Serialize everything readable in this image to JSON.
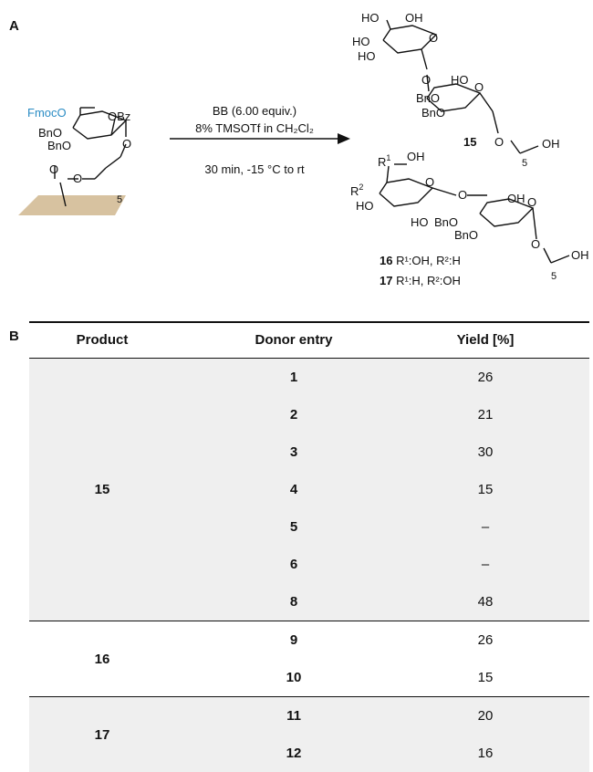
{
  "panel_a_label": "A",
  "panel_b_label": "B",
  "scheme": {
    "conditions_line1": "BB (6.00 equiv.)",
    "conditions_line2": "8% TMSOTf in CH₂Cl₂",
    "conditions_line3": "30 min, -15 °C to rt",
    "start_labels": {
      "fmoco": "FmocO",
      "obz": "OBz",
      "bno_1": "BnO",
      "bno_2": "BnO",
      "ester_o": "O",
      "ester_o2": "O",
      "chain_o": "O",
      "subscript": "5"
    },
    "prod15": {
      "number": "15",
      "ho_1": "HO",
      "oh_1": "OH",
      "ho_2": "HO",
      "ho_3": "HO",
      "ring_o_1": "O",
      "ring_o_2": "O",
      "link_o": "O",
      "ho_4": "HO",
      "bno_1": "BnO",
      "bno_2": "BnO",
      "o_glyco": "O",
      "oh_end": "OH",
      "subscript": "5"
    },
    "prod1617": {
      "r1": "R",
      "r1_sup": "1",
      "r2": "R",
      "r2_sup": "2",
      "oh_top": "OH",
      "ho_left": "HO",
      "ring_o": "O",
      "link_o": "O",
      "oh_right": "OH",
      "ring_o2": "O",
      "ho_mid": "HO",
      "bno_1": "BnO",
      "bno_2": "BnO",
      "o_glyco": "O",
      "oh_end": "OH",
      "subscript": "5",
      "label16_num": "16",
      "label16_text": " R¹:OH, R²:H",
      "label17_num": "17",
      "label17_text": " R¹:H, R²:OH"
    }
  },
  "table": {
    "headers": [
      "Product",
      "Donor entry",
      "Yield [%]"
    ],
    "groups": [
      {
        "product": "15",
        "rows": [
          {
            "entry": "1",
            "yield": "26"
          },
          {
            "entry": "2",
            "yield": "21"
          },
          {
            "entry": "3",
            "yield": "30"
          },
          {
            "entry": "4",
            "yield": "15"
          },
          {
            "entry": "5",
            "yield": "–"
          },
          {
            "entry": "6",
            "yield": "–"
          },
          {
            "entry": "8",
            "yield": "48"
          }
        ]
      },
      {
        "product": "16",
        "rows": [
          {
            "entry": "9",
            "yield": "26"
          },
          {
            "entry": "10",
            "yield": "15"
          }
        ]
      },
      {
        "product": "17",
        "rows": [
          {
            "entry": "11",
            "yield": "20"
          },
          {
            "entry": "12",
            "yield": "16"
          }
        ]
      }
    ]
  }
}
